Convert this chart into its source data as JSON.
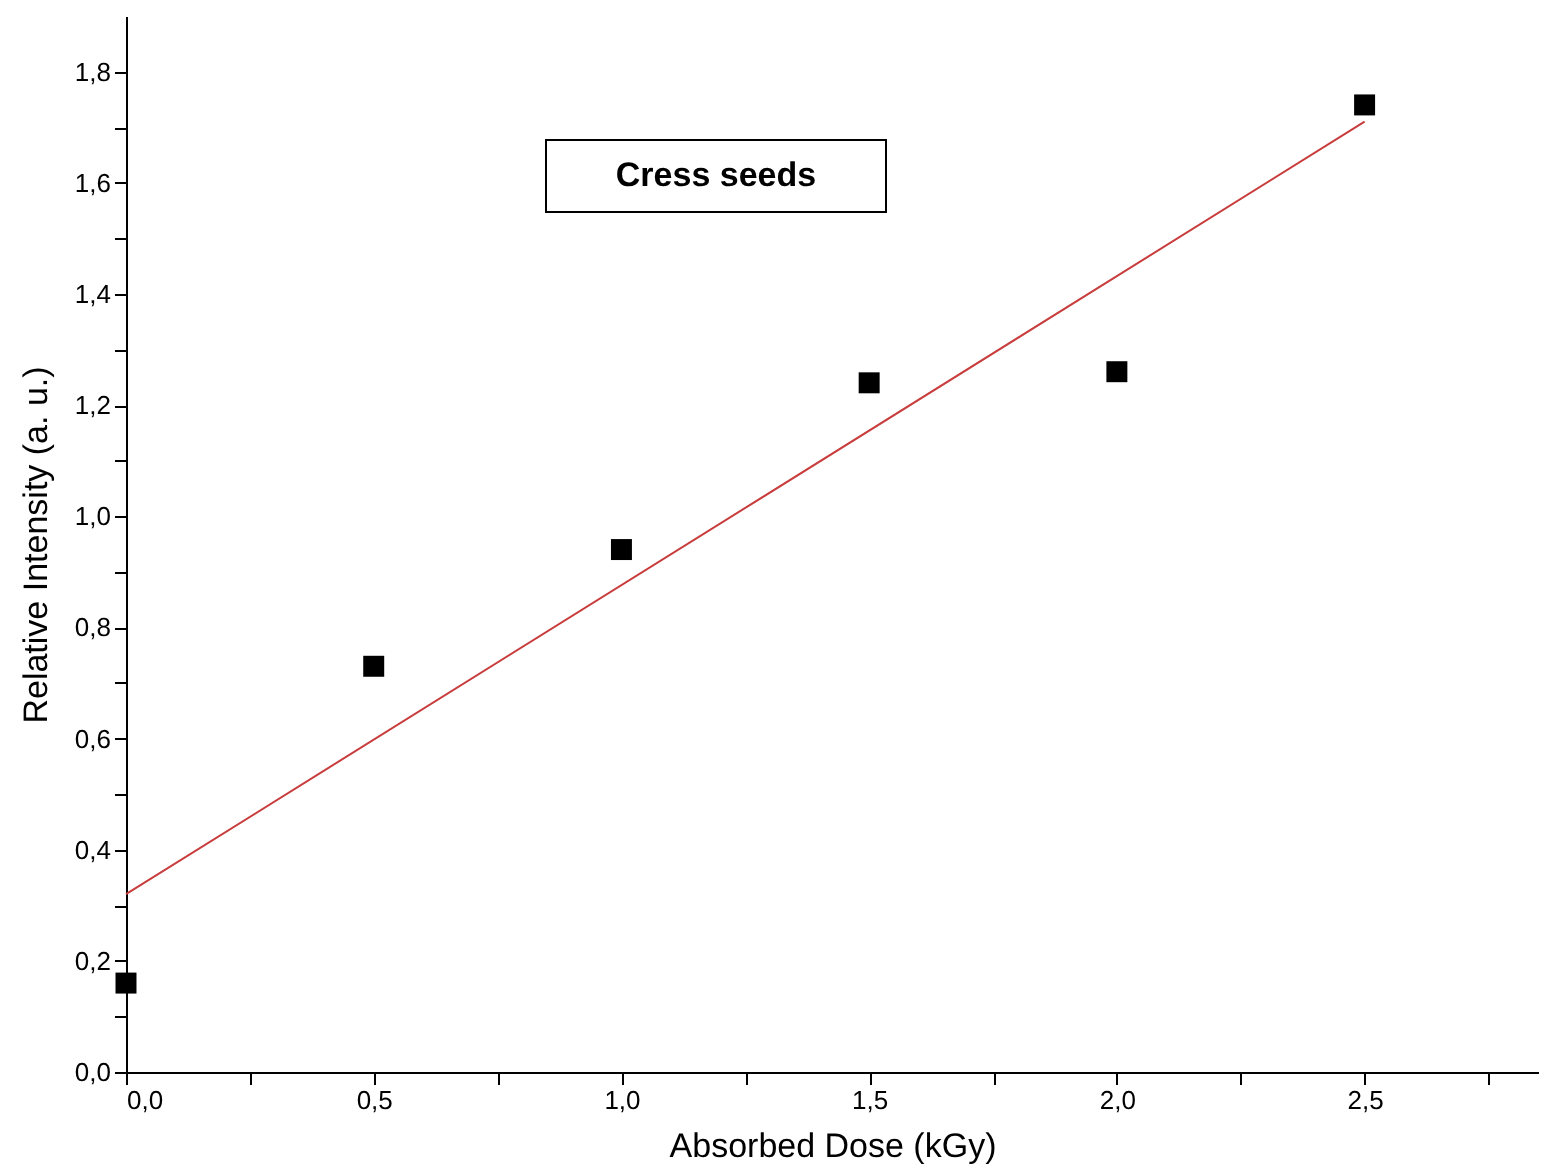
{
  "chart_data": {
    "type": "scatter",
    "xlabel": "Absorbed Dose (kGy)",
    "ylabel": "Relative Intensity (a. u.)",
    "annotations": [
      "Cress seeds"
    ],
    "x": [
      0,
      0.5,
      1.0,
      1.5,
      2.0,
      2.5
    ],
    "series": [
      {
        "type": "scatter",
        "color": "#000000",
        "marker": "square",
        "values": [
          0.16,
          0.73,
          0.94,
          1.24,
          1.26,
          1.74
        ]
      },
      {
        "type": "line",
        "color": "#c83c3c",
        "x": [
          0,
          2.5
        ],
        "values": [
          0.32,
          1.71
        ]
      }
    ],
    "xlim": [
      0,
      2.85
    ],
    "ylim": [
      0,
      1.9
    ],
    "xticks": [
      {
        "value": 0,
        "label": "0,0"
      },
      {
        "value": 0.25,
        "label": null
      },
      {
        "value": 0.5,
        "label": "0,5"
      },
      {
        "value": 0.75,
        "label": null
      },
      {
        "value": 1,
        "label": "1,0"
      },
      {
        "value": 1.25,
        "label": null
      },
      {
        "value": 1.5,
        "label": "1,5"
      },
      {
        "value": 1.75,
        "label": null
      },
      {
        "value": 2,
        "label": "2,0"
      },
      {
        "value": 2.25,
        "label": null
      },
      {
        "value": 2.5,
        "label": "2,5"
      },
      {
        "value": 2.75,
        "label": null
      }
    ],
    "yticks": [
      {
        "value": 0,
        "label": "0,0"
      },
      {
        "value": 0.1,
        "label": null
      },
      {
        "value": 0.2,
        "label": "0,2"
      },
      {
        "value": 0.3,
        "label": null
      },
      {
        "value": 0.4,
        "label": "0,4"
      },
      {
        "value": 0.5,
        "label": null
      },
      {
        "value": 0.6,
        "label": "0,6"
      },
      {
        "value": 0.7,
        "label": null
      },
      {
        "value": 0.8,
        "label": "0,8"
      },
      {
        "value": 0.9,
        "label": null
      },
      {
        "value": 1,
        "label": "1,0"
      },
      {
        "value": 1.1,
        "label": null
      },
      {
        "value": 1.2,
        "label": "1,2"
      },
      {
        "value": 1.3,
        "label": null
      },
      {
        "value": 1.4,
        "label": "1,4"
      },
      {
        "value": 1.5,
        "label": null
      },
      {
        "value": 1.6,
        "label": "1,6"
      },
      {
        "value": 1.7,
        "label": null
      },
      {
        "value": 1.8,
        "label": "1,8"
      }
    ],
    "grid": false
  }
}
